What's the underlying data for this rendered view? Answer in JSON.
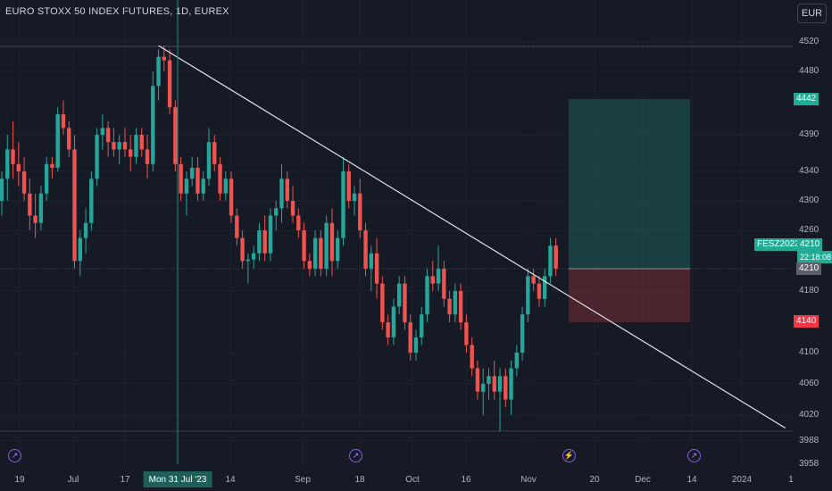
{
  "header": {
    "title": "EURO STOXX 50 INDEX FUTURES, 1D, EUREX",
    "currency_button": "EUR"
  },
  "colors": {
    "background": "#161a25",
    "up": "#26a69a",
    "down": "#ef5350",
    "target_zone": "#1e5f5a",
    "stop_zone": "#5e2a32",
    "trendline": "#e0e3eb"
  },
  "price_axis": {
    "labels": [
      "4520",
      "4480",
      "4390",
      "4340",
      "4300",
      "4260",
      "4180",
      "4100",
      "4060",
      "4020",
      "3988",
      "3958"
    ],
    "tags": {
      "target": "4442",
      "symbol": "FESZ2023",
      "last_price": "4210",
      "countdown": "22:18:08",
      "entry": "4210",
      "stop": "4140"
    }
  },
  "time_axis": {
    "labels": [
      "19",
      "Jul",
      "17",
      "14",
      "Sep",
      "18",
      "Oct",
      "16",
      "Nov",
      "20",
      "Dec",
      "14",
      "2024",
      "1"
    ],
    "crosshair_label": "Mon 31 Jul '23"
  },
  "event_markers": [
    "dividend-icon",
    "dividend-icon",
    "earnings-icon",
    "dividend-icon"
  ],
  "chart_data": {
    "type": "candlestick",
    "title": "EURO STOXX 50 INDEX FUTURES, 1D, EUREX",
    "ylim": [
      3950,
      4560
    ],
    "candles": [
      [
        4300,
        4340,
        4280,
        4330
      ],
      [
        4330,
        4390,
        4300,
        4370
      ],
      [
        4370,
        4410,
        4330,
        4350
      ],
      [
        4350,
        4380,
        4320,
        4340
      ],
      [
        4340,
        4360,
        4300,
        4310
      ],
      [
        4310,
        4330,
        4260,
        4280
      ],
      [
        4280,
        4310,
        4250,
        4270
      ],
      [
        4270,
        4320,
        4260,
        4310
      ],
      [
        4310,
        4360,
        4300,
        4350
      ],
      [
        4350,
        4360,
        4330,
        4345
      ],
      [
        4345,
        4430,
        4340,
        4420
      ],
      [
        4420,
        4440,
        4390,
        4400
      ],
      [
        4400,
        4410,
        4360,
        4370
      ],
      [
        4370,
        4390,
        4210,
        4220
      ],
      [
        4220,
        4260,
        4200,
        4250
      ],
      [
        4250,
        4290,
        4230,
        4270
      ],
      [
        4270,
        4340,
        4260,
        4330
      ],
      [
        4330,
        4400,
        4320,
        4390
      ],
      [
        4390,
        4420,
        4370,
        4400
      ],
      [
        4400,
        4410,
        4360,
        4380
      ],
      [
        4380,
        4400,
        4360,
        4370
      ],
      [
        4370,
        4390,
        4350,
        4380
      ],
      [
        4380,
        4400,
        4360,
        4370
      ],
      [
        4370,
        4390,
        4340,
        4360
      ],
      [
        4360,
        4400,
        4350,
        4390
      ],
      [
        4390,
        4400,
        4360,
        4370
      ],
      [
        4370,
        4390,
        4330,
        4350
      ],
      [
        4350,
        4480,
        4340,
        4460
      ],
      [
        4460,
        4510,
        4440,
        4500
      ],
      [
        4500,
        4515,
        4480,
        4495
      ],
      [
        4495,
        4510,
        4420,
        4430
      ],
      [
        4430,
        4440,
        4340,
        4350
      ],
      [
        4350,
        4360,
        4300,
        4310
      ],
      [
        4310,
        4340,
        4280,
        4330
      ],
      [
        4330,
        4360,
        4320,
        4345
      ],
      [
        4345,
        4360,
        4300,
        4310
      ],
      [
        4310,
        4340,
        4300,
        4330
      ],
      [
        4330,
        4400,
        4320,
        4380
      ],
      [
        4380,
        4390,
        4340,
        4350
      ],
      [
        4350,
        4360,
        4300,
        4310
      ],
      [
        4310,
        4340,
        4300,
        4330
      ],
      [
        4330,
        4340,
        4270,
        4280
      ],
      [
        4280,
        4290,
        4240,
        4250
      ],
      [
        4250,
        4260,
        4210,
        4220
      ],
      [
        4220,
        4230,
        4190,
        4222
      ],
      [
        4222,
        4240,
        4210,
        4230
      ],
      [
        4230,
        4270,
        4220,
        4260
      ],
      [
        4260,
        4280,
        4220,
        4230
      ],
      [
        4230,
        4290,
        4220,
        4280
      ],
      [
        4280,
        4300,
        4260,
        4290
      ],
      [
        4290,
        4350,
        4270,
        4330
      ],
      [
        4330,
        4340,
        4290,
        4300
      ],
      [
        4300,
        4320,
        4270,
        4280
      ],
      [
        4280,
        4290,
        4250,
        4260
      ],
      [
        4260,
        4270,
        4210,
        4220
      ],
      [
        4220,
        4230,
        4200,
        4210
      ],
      [
        4210,
        4260,
        4200,
        4250
      ],
      [
        4250,
        4260,
        4200,
        4210
      ],
      [
        4210,
        4280,
        4200,
        4270
      ],
      [
        4270,
        4290,
        4200,
        4220
      ],
      [
        4220,
        4260,
        4210,
        4250
      ],
      [
        4250,
        4360,
        4240,
        4340
      ],
      [
        4340,
        4350,
        4290,
        4300
      ],
      [
        4300,
        4320,
        4280,
        4310
      ],
      [
        4310,
        4330,
        4250,
        4260
      ],
      [
        4260,
        4270,
        4200,
        4210
      ],
      [
        4210,
        4240,
        4180,
        4230
      ],
      [
        4230,
        4250,
        4170,
        4190
      ],
      [
        4190,
        4200,
        4130,
        4140
      ],
      [
        4140,
        4150,
        4110,
        4120
      ],
      [
        4120,
        4170,
        4110,
        4160
      ],
      [
        4160,
        4200,
        4150,
        4190
      ],
      [
        4190,
        4200,
        4130,
        4140
      ],
      [
        4140,
        4150,
        4090,
        4100
      ],
      [
        4100,
        4130,
        4090,
        4120
      ],
      [
        4120,
        4160,
        4110,
        4150
      ],
      [
        4150,
        4210,
        4140,
        4200
      ],
      [
        4200,
        4220,
        4180,
        4190
      ],
      [
        4190,
        4240,
        4180,
        4210
      ],
      [
        4210,
        4220,
        4160,
        4170
      ],
      [
        4170,
        4180,
        4140,
        4150
      ],
      [
        4150,
        4190,
        4140,
        4180
      ],
      [
        4180,
        4190,
        4130,
        4140
      ],
      [
        4140,
        4150,
        4100,
        4110
      ],
      [
        4110,
        4120,
        4070,
        4080
      ],
      [
        4080,
        4090,
        4040,
        4050
      ],
      [
        4050,
        4080,
        4020,
        4060
      ],
      [
        4060,
        4080,
        4040,
        4070
      ],
      [
        4070,
        4090,
        4040,
        4050
      ],
      [
        4050,
        4080,
        4000,
        4070
      ],
      [
        4070,
        4080,
        4030,
        4040
      ],
      [
        4040,
        4090,
        4020,
        4080
      ],
      [
        4080,
        4110,
        4070,
        4100
      ],
      [
        4100,
        4160,
        4090,
        4150
      ],
      [
        4150,
        4210,
        4140,
        4200
      ],
      [
        4200,
        4210,
        4180,
        4190
      ],
      [
        4190,
        4200,
        4160,
        4170
      ],
      [
        4170,
        4210,
        4160,
        4200
      ],
      [
        4200,
        4250,
        4190,
        4240
      ],
      [
        4240,
        4250,
        4200,
        4210
      ]
    ],
    "trendline": {
      "from": [
        28,
        4515
      ],
      "to": [
        140,
        4004
      ]
    },
    "position": {
      "entry": 4210,
      "target": 4442,
      "stop": 4140
    }
  }
}
